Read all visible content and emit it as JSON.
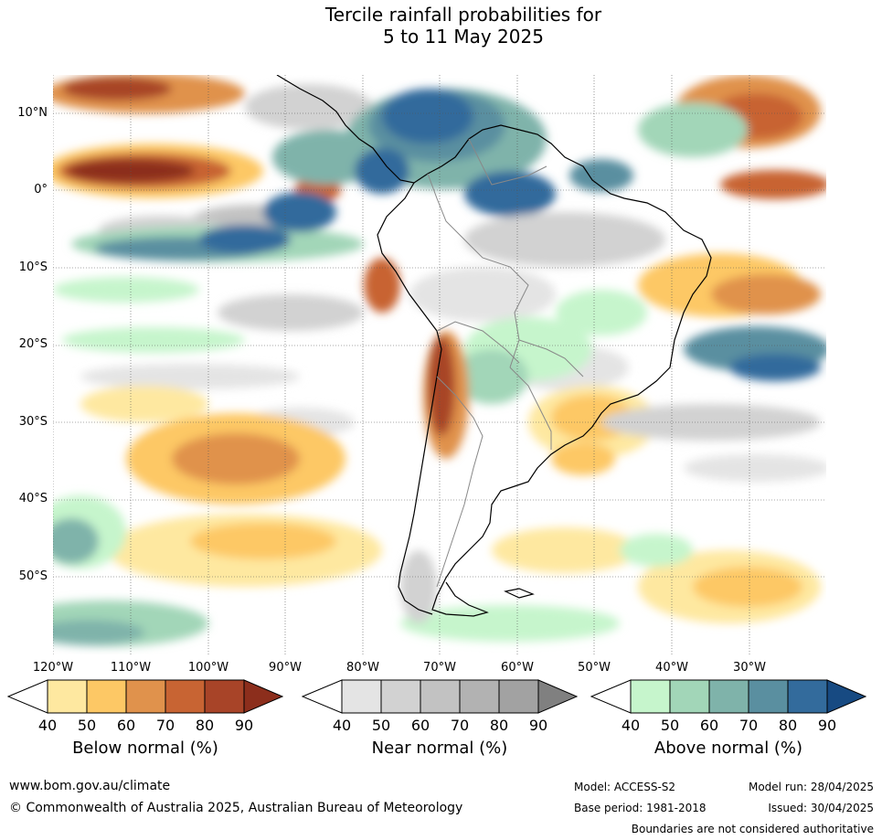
{
  "title_line1": "Tercile rainfall probabilities for",
  "title_line2": "5 to 11 May 2025",
  "lat_labels": [
    "10°N",
    "0°",
    "10°S",
    "20°S",
    "30°S",
    "40°S",
    "50°S"
  ],
  "lon_labels": [
    "120°W",
    "110°W",
    "100°W",
    "90°W",
    "80°W",
    "70°W",
    "60°W",
    "50°W",
    "40°W",
    "30°W"
  ],
  "colorbars": [
    {
      "title": "Below normal (%)",
      "ticks": [
        "40",
        "50",
        "60",
        "70",
        "80",
        "90"
      ],
      "colors": [
        "#ffffff",
        "#fee8a0",
        "#fdc865",
        "#e0924c",
        "#c86433",
        "#a84428",
        "#8c2e1c"
      ]
    },
    {
      "title": "Near normal (%)",
      "ticks": [
        "40",
        "50",
        "60",
        "70",
        "80",
        "90"
      ],
      "colors": [
        "#ffffff",
        "#e4e4e4",
        "#d2d2d2",
        "#c2c2c2",
        "#b2b2b2",
        "#a2a2a2",
        "#808080"
      ]
    },
    {
      "title": "Above normal (%)",
      "ticks": [
        "40",
        "50",
        "60",
        "70",
        "80",
        "90"
      ],
      "colors": [
        "#ffffff",
        "#c6f5cc",
        "#a2d6b8",
        "#7fb3aa",
        "#5a8fa0",
        "#336b9c",
        "#174a82"
      ]
    }
  ],
  "footer": {
    "url": "www.bom.gov.au/climate",
    "copyright": "© Commonwealth of Australia 2025, Australian Bureau of Meteorology",
    "model": "Model: ACCESS-S2",
    "base_period": "Base period: 1981-2018",
    "model_run": "Model run: 28/04/2025",
    "issued": "Issued: 30/04/2025",
    "disclaimer": "Boundaries are not considered authoritative"
  }
}
